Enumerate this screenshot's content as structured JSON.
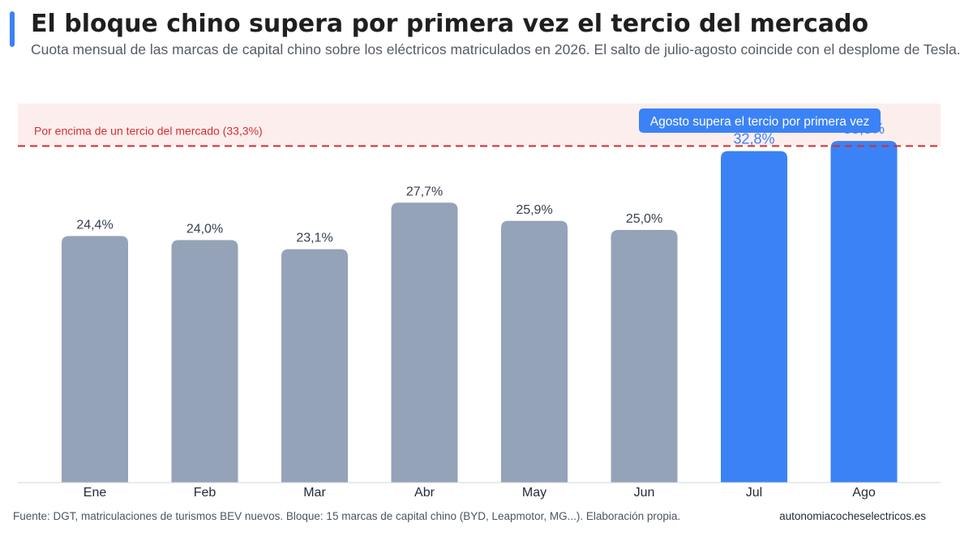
{
  "header": {
    "title": "El bloque chino supera por primera vez el tercio del mercado",
    "subtitle": "Cuota mensual de las marcas de capital chino sobre los eléctricos matriculados en 2026. El salto de julio-agosto coincide con el desplome de Tesla."
  },
  "footer": {
    "source": "Fuente: DGT, matriculaciones de turismos BEV nuevos. Bloque: 15 marcas de capital chino (BYD, Leapmotor, MG...). Elaboración propia.",
    "site": "autonomiacocheselectricos.es"
  },
  "colors": {
    "accent": "#3b82f6",
    "bar_default": "#94a3b8",
    "bar_highlight": "#3b82f6",
    "threshold_line": "#d32f2f",
    "threshold_zone": "#fdeeee",
    "value_label_default": "#374151",
    "value_label_highlight": "#3b82f6"
  },
  "chart_data": {
    "type": "bar",
    "categories": [
      "Ene",
      "Feb",
      "Mar",
      "Abr",
      "May",
      "Jun",
      "Jul",
      "Ago"
    ],
    "values": [
      24.4,
      24.0,
      23.1,
      27.7,
      25.9,
      25.0,
      32.8,
      33.8
    ],
    "value_labels": [
      "24,4%",
      "24,0%",
      "23,1%",
      "27,7%",
      "25,9%",
      "25,0%",
      "32,8%",
      "33,8%"
    ],
    "highlighted": [
      false,
      false,
      false,
      false,
      false,
      false,
      true,
      true
    ],
    "ylim": [
      0,
      37.5
    ],
    "threshold": {
      "value": 33.3,
      "label": "Por encima de un tercio del mercado (33,3%)"
    },
    "annotation": {
      "text": "Agosto supera el tercio por primera vez",
      "category": "Ago"
    },
    "grid": false,
    "xlabel": "",
    "ylabel": ""
  }
}
